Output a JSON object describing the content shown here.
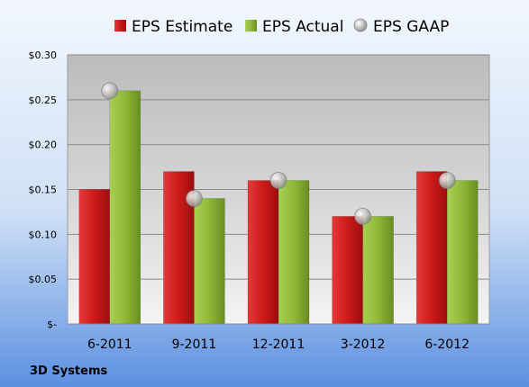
{
  "chart_data": {
    "type": "bar",
    "categories": [
      "6-2011",
      "9-2011",
      "12-2011",
      "3-2012",
      "6-2012"
    ],
    "series": [
      {
        "name": "EPS Estimate",
        "kind": "bar",
        "color": "#cc1a1a",
        "values": [
          0.15,
          0.17,
          0.16,
          0.12,
          0.17
        ]
      },
      {
        "name": "EPS Actual",
        "kind": "bar",
        "color": "#8fb838",
        "values": [
          0.26,
          0.14,
          0.16,
          0.12,
          0.16
        ]
      },
      {
        "name": "EPS GAAP",
        "kind": "scatter",
        "color": "#b0b0b0",
        "values": [
          0.26,
          0.14,
          0.16,
          0.12,
          0.16
        ]
      }
    ],
    "ylim": [
      0,
      0.3
    ],
    "yticks": [
      {
        "value": 0.3,
        "label": "$0.30"
      },
      {
        "value": 0.25,
        "label": "$0.25"
      },
      {
        "value": 0.2,
        "label": "$0.20"
      },
      {
        "value": 0.15,
        "label": "$0.15"
      },
      {
        "value": 0.1,
        "label": "$0.10"
      },
      {
        "value": 0.05,
        "label": "$0.05"
      },
      {
        "value": 0,
        "label": "$-"
      }
    ],
    "grid": true,
    "legend_position": "top",
    "company": "3D Systems"
  }
}
